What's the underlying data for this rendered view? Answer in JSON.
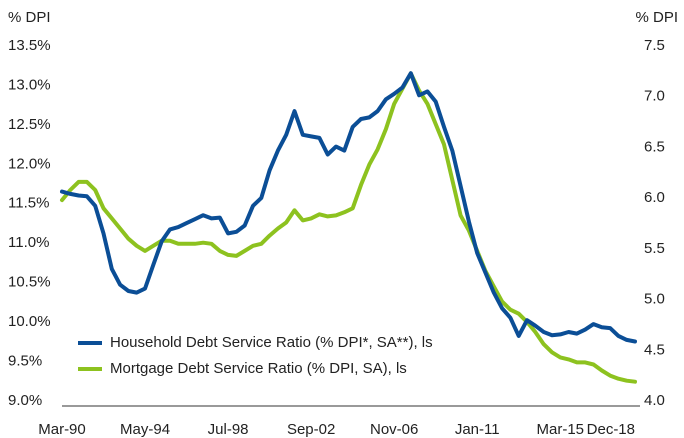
{
  "chart_data": {
    "type": "line",
    "ylabel": "% DPI",
    "y2label": "% DPI",
    "categories": [
      "Mar-90",
      null,
      null,
      null,
      null,
      null,
      null,
      null,
      null,
      null,
      "May-94",
      null,
      null,
      null,
      null,
      null,
      null,
      null,
      null,
      null,
      "Jul-98",
      null,
      null,
      null,
      null,
      null,
      null,
      null,
      null,
      null,
      "Sep-02",
      null,
      null,
      null,
      null,
      null,
      null,
      null,
      null,
      null,
      "Nov-06",
      null,
      null,
      null,
      null,
      null,
      null,
      null,
      null,
      null,
      "Jan-11",
      null,
      null,
      null,
      null,
      null,
      null,
      null,
      null,
      null,
      "Mar-15",
      null,
      null,
      null,
      null,
      null,
      null,
      null,
      null,
      "Dec-18"
    ],
    "series": [
      {
        "name": "Household Debt Service Ratio (% DPI*, SA**), ls",
        "color": "#0b4e96",
        "axis": "y",
        "values": [
          11.68,
          11.65,
          11.63,
          11.62,
          11.5,
          11.15,
          10.7,
          10.5,
          10.42,
          10.4,
          10.45,
          10.75,
          11.05,
          11.2,
          11.23,
          11.28,
          11.33,
          11.38,
          11.34,
          11.35,
          11.15,
          11.17,
          11.25,
          11.5,
          11.6,
          11.95,
          12.2,
          12.4,
          12.7,
          12.4,
          12.38,
          12.36,
          12.15,
          12.25,
          12.2,
          12.5,
          12.6,
          12.62,
          12.7,
          12.85,
          12.92,
          13.0,
          13.18,
          12.9,
          12.95,
          12.82,
          12.5,
          12.2,
          11.75,
          11.3,
          10.9,
          10.65,
          10.4,
          10.2,
          10.08,
          9.85,
          10.05,
          9.98,
          9.9,
          9.86,
          9.87,
          9.9,
          9.88,
          9.93,
          10.0,
          9.96,
          9.95,
          9.85,
          9.8,
          9.78
        ]
      },
      {
        "name": "Mortgage Debt Service Ratio (% DPI, SA), ls",
        "color": "#8dc21f",
        "axis": "y2",
        "values": [
          6.0,
          6.1,
          6.18,
          6.18,
          6.1,
          5.92,
          5.82,
          5.72,
          5.62,
          5.55,
          5.5,
          5.55,
          5.6,
          5.6,
          5.57,
          5.57,
          5.57,
          5.58,
          5.57,
          5.5,
          5.46,
          5.45,
          5.5,
          5.55,
          5.57,
          5.65,
          5.72,
          5.78,
          5.9,
          5.8,
          5.82,
          5.86,
          5.84,
          5.85,
          5.88,
          5.92,
          6.15,
          6.35,
          6.5,
          6.7,
          6.95,
          7.1,
          7.25,
          7.08,
          6.95,
          6.75,
          6.55,
          6.2,
          5.85,
          5.7,
          5.5,
          5.3,
          5.15,
          5.0,
          4.92,
          4.88,
          4.8,
          4.7,
          4.58,
          4.5,
          4.45,
          4.43,
          4.4,
          4.4,
          4.38,
          4.32,
          4.27,
          4.24,
          4.22,
          4.21
        ]
      }
    ],
    "ylim": [
      9.0,
      13.5
    ],
    "yticks": [
      {
        "value": 9.0,
        "label": "9.0%"
      },
      {
        "value": 9.5,
        "label": "9.5%"
      },
      {
        "value": 10.0,
        "label": "10.0%"
      },
      {
        "value": 10.5,
        "label": "10.5%"
      },
      {
        "value": 11.0,
        "label": "11.0%"
      },
      {
        "value": 11.5,
        "label": "11.5%"
      },
      {
        "value": 12.0,
        "label": "12.0%"
      },
      {
        "value": 12.5,
        "label": "12.5%"
      },
      {
        "value": 13.0,
        "label": "13.0%"
      },
      {
        "value": 13.5,
        "label": "13.5%"
      }
    ],
    "y2lim": [
      4.0,
      7.5
    ],
    "y2ticks": [
      {
        "value": 4.0,
        "label": "4.0"
      },
      4.5,
      {
        "value": 5.0,
        "label": "5.0"
      },
      5.5,
      {
        "value": 6.0,
        "label": "6.0"
      },
      6.5,
      {
        "value": 7.0,
        "label": "7.0"
      },
      7.5
    ],
    "legend": "lower left"
  }
}
